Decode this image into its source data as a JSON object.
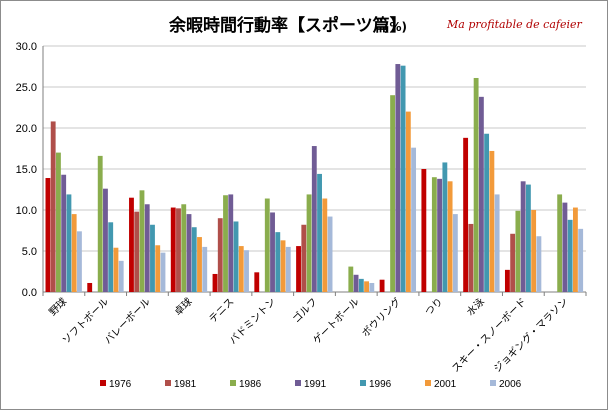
{
  "chart_data": {
    "type": "bar",
    "title": "余暇時間行動率【スポーツ篇】",
    "title_unit": "(%)",
    "watermark": "Ma profitable de cafeier",
    "ylim": [
      0,
      30
    ],
    "yticks": [
      "0.0",
      "5.0",
      "10.0",
      "15.0",
      "20.0",
      "25.0",
      "30.0"
    ],
    "grid": true,
    "legend_position": "bottom",
    "categories": [
      "野球",
      "ソフトボール",
      "バレーボール",
      "卓球",
      "テニス",
      "バドミントン",
      "ゴルフ",
      "ゲートボール",
      "ボウリング",
      "つり",
      "水泳",
      "スキー・スノーボード",
      "ジョギング・マラソン"
    ],
    "series": [
      {
        "name": "1976",
        "color": "#c00000",
        "values": [
          13.9,
          1.1,
          11.5,
          10.3,
          2.2,
          2.4,
          5.6,
          null,
          1.5,
          15.0,
          18.8,
          2.7,
          null
        ]
      },
      {
        "name": "1981",
        "color": "#b04f4a",
        "values": [
          20.8,
          null,
          9.8,
          10.2,
          9.0,
          null,
          8.2,
          null,
          null,
          null,
          8.3,
          7.1,
          null
        ]
      },
      {
        "name": "1986",
        "color": "#8aad4d",
        "values": [
          17.0,
          16.6,
          12.4,
          10.7,
          11.8,
          11.4,
          11.9,
          3.1,
          24.0,
          14.0,
          26.1,
          9.9,
          11.9
        ]
      },
      {
        "name": "1991",
        "color": "#705c95",
        "values": [
          14.3,
          12.6,
          10.7,
          9.5,
          11.9,
          9.7,
          17.8,
          2.1,
          27.8,
          13.8,
          23.8,
          13.5,
          10.9
        ]
      },
      {
        "name": "1996",
        "color": "#4298b0",
        "values": [
          11.9,
          8.5,
          8.2,
          7.9,
          8.6,
          7.3,
          14.4,
          1.6,
          27.6,
          15.8,
          19.3,
          13.1,
          8.8
        ]
      },
      {
        "name": "2001",
        "color": "#f29a3a",
        "values": [
          9.5,
          5.4,
          5.7,
          6.7,
          5.6,
          6.3,
          11.4,
          1.3,
          22.0,
          13.5,
          17.2,
          10.0,
          10.3
        ]
      },
      {
        "name": "2006",
        "color": "#a5b9d9",
        "values": [
          7.4,
          3.8,
          4.8,
          5.5,
          5.1,
          5.5,
          9.2,
          1.1,
          17.6,
          9.5,
          11.9,
          6.8,
          7.7
        ]
      }
    ]
  }
}
